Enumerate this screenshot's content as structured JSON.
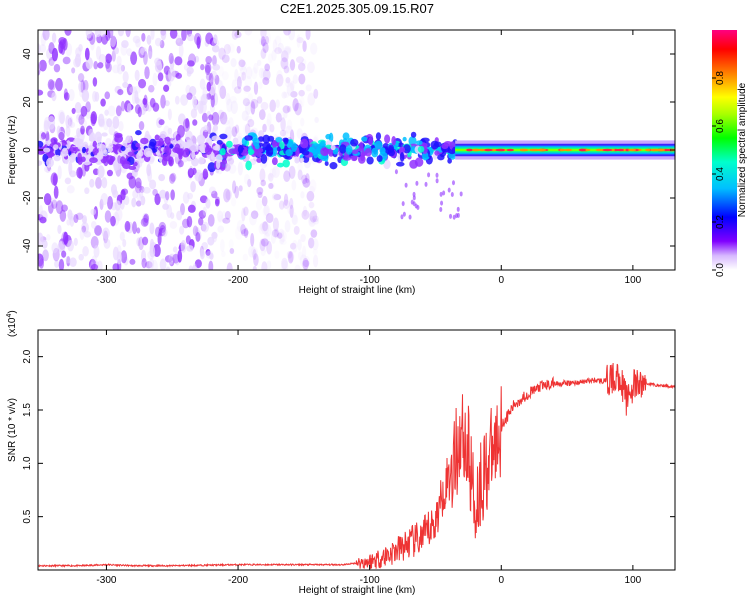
{
  "title": "C2E1.2025.305.09.15.R07",
  "chart_data": [
    {
      "type": "heatmap",
      "name": "spectrogram",
      "xlabel": "Height of straight line (km)",
      "ylabel": "Frequency (Hz)",
      "xlim": [
        -352,
        132
      ],
      "ylim": [
        -50,
        50
      ],
      "xticks": [
        -300,
        -200,
        -100,
        0,
        100
      ],
      "yticks": [
        -40,
        -20,
        0,
        20,
        40
      ],
      "colorbar": {
        "label": "Normalized spectral amplitude",
        "range": [
          0.0,
          1.0
        ],
        "ticks": [
          0.0,
          0.2,
          0.4,
          0.6,
          0.8
        ],
        "colormap": [
          "#ffffff",
          "#8000ff",
          "#0000ff",
          "#00ffff",
          "#00ff00",
          "#ffff00",
          "#ff8000",
          "#ff0000",
          "#ff0080"
        ]
      },
      "description_bands": [
        {
          "x_from": -352,
          "x_to": -215,
          "freq_spread_hz": 50,
          "amplitude": 0.1
        },
        {
          "x_from": -215,
          "x_to": -35,
          "freq_spread_hz": 8,
          "amplitude": 0.35
        },
        {
          "x_from": -35,
          "x_to": 132,
          "freq_spread_hz": 3,
          "amplitude": 0.9
        }
      ]
    },
    {
      "type": "line",
      "name": "snr",
      "xlabel": "Height of straight line (km)",
      "ylabel": "SNR (10 * v/v)",
      "scale_note": "(x10",
      "scale_exp": "4",
      "xlim": [
        -352,
        132
      ],
      "ylim": [
        0.0,
        2.25
      ],
      "xticks": [
        -300,
        -200,
        -100,
        0,
        100
      ],
      "yticks": [
        0.5,
        1.0,
        1.5,
        2.0
      ],
      "ytick_labels": [
        "0.5",
        "1.0",
        "1.5",
        "2.0"
      ],
      "color": "#ee3333",
      "series": [
        {
          "name": "SNR",
          "x": [
            -352,
            -320,
            -300,
            -280,
            -250,
            -200,
            -150,
            -120,
            -100,
            -90,
            -80,
            -70,
            -60,
            -50,
            -45,
            -40,
            -35,
            -30,
            -25,
            -20,
            -15,
            -10,
            -5,
            0,
            10,
            20,
            30,
            40,
            50,
            60,
            70,
            80,
            90,
            95,
            100,
            110,
            120,
            132
          ],
          "values": [
            0.04,
            0.04,
            0.05,
            0.04,
            0.04,
            0.05,
            0.05,
            0.05,
            0.08,
            0.12,
            0.18,
            0.25,
            0.3,
            0.45,
            0.7,
            0.9,
            1.05,
            1.3,
            1.1,
            0.6,
            0.85,
            1.0,
            1.15,
            1.35,
            1.55,
            1.65,
            1.72,
            1.75,
            1.75,
            1.76,
            1.78,
            1.77,
            1.82,
            1.6,
            1.72,
            1.75,
            1.73,
            1.72
          ]
        }
      ]
    }
  ]
}
